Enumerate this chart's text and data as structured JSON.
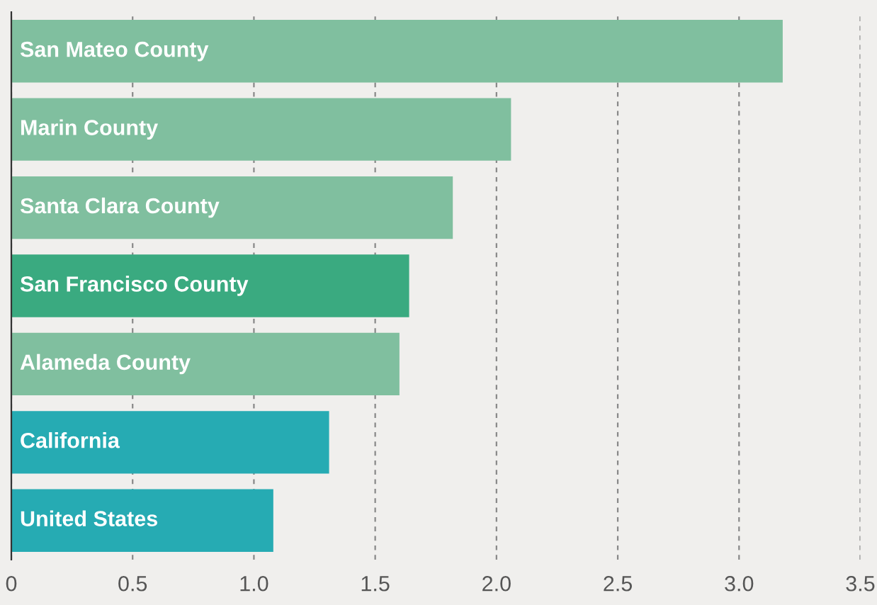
{
  "chart_data": {
    "type": "bar",
    "orientation": "horizontal",
    "categories": [
      "San Mateo County",
      "Marin County",
      "Santa Clara County",
      "San Francisco County",
      "Alameda County",
      "California",
      "United States"
    ],
    "values": [
      3.18,
      2.06,
      1.82,
      1.64,
      1.6,
      1.31,
      1.08
    ],
    "colors": [
      "#80bf9f",
      "#80bf9f",
      "#80bf9f",
      "#3aaa80",
      "#80bf9f",
      "#26abb3",
      "#26abb3"
    ],
    "xlim": [
      0,
      3.5
    ],
    "xticks": [
      0,
      0.5,
      {
        "value": 1,
        "label": "1.0"
      },
      1.5,
      {
        "value": 2,
        "label": "2.0"
      },
      2.5,
      {
        "value": 3,
        "label": "3.0"
      },
      3.5
    ],
    "grid": "x"
  }
}
